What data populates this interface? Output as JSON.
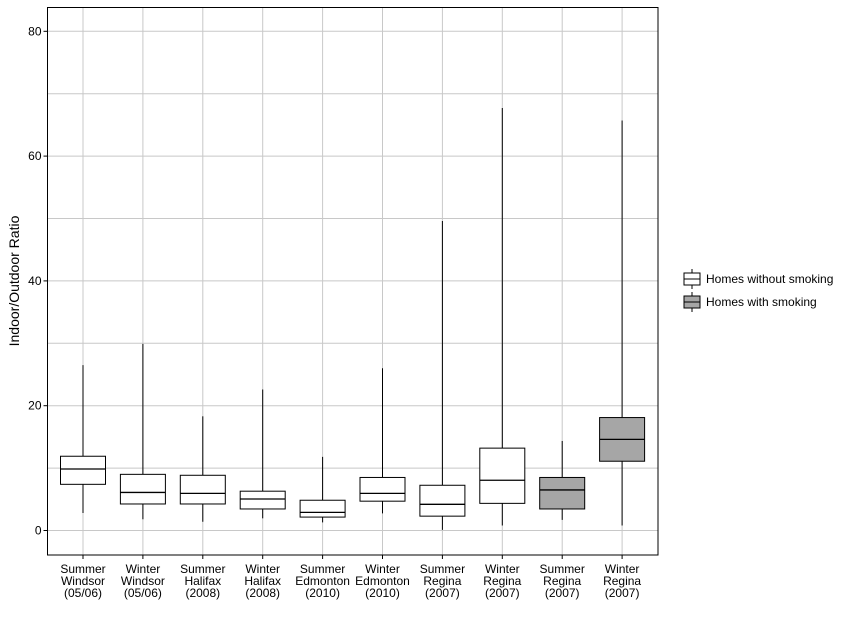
{
  "chart_data": {
    "type": "boxplot",
    "title": "",
    "xlabel": "",
    "ylabel": "Indoor/Outdoor Ratio",
    "ylim": [
      -3.9,
      83.9
    ],
    "yticks": [
      0,
      20,
      40,
      60,
      80
    ],
    "grid": true,
    "legend_position": "right",
    "legend": [
      {
        "label": "Homes without smoking",
        "fill": "#ffffff"
      },
      {
        "label": "Homes with smoking",
        "fill": "#a6a6a6"
      }
    ],
    "categories": [
      [
        "Summer",
        "Windsor",
        "(05/06)"
      ],
      [
        "Winter",
        "Windsor",
        "(05/06)"
      ],
      [
        "Summer",
        "Halifax",
        "(2008)"
      ],
      [
        "Winter",
        "Halifax",
        "(2008)"
      ],
      [
        "Summer",
        "Edmonton",
        "(2010)"
      ],
      [
        "Winter",
        "Edmonton",
        "(2010)"
      ],
      [
        "Summer",
        "Regina",
        "(2007)"
      ],
      [
        "Winter",
        "Regina",
        "(2007)"
      ],
      [
        "Summer",
        "Regina",
        "(2007)"
      ],
      [
        "Winter",
        "Regina",
        "(2007)"
      ]
    ],
    "boxes": [
      {
        "group": 0,
        "min": 2.8,
        "q1": 7.4,
        "median": 9.85,
        "q3": 11.9,
        "max": 26.5
      },
      {
        "group": 0,
        "min": 1.8,
        "q1": 4.25,
        "median": 6.1,
        "q3": 9.0,
        "max": 29.9
      },
      {
        "group": 0,
        "min": 1.4,
        "q1": 4.25,
        "median": 5.95,
        "q3": 8.85,
        "max": 18.3
      },
      {
        "group": 0,
        "min": 1.95,
        "q1": 3.45,
        "median": 5.05,
        "q3": 6.3,
        "max": 22.6
      },
      {
        "group": 0,
        "min": 1.3,
        "q1": 2.15,
        "median": 2.9,
        "q3": 4.85,
        "max": 11.8
      },
      {
        "group": 0,
        "min": 2.75,
        "q1": 4.7,
        "median": 5.95,
        "q3": 8.5,
        "max": 26.0
      },
      {
        "group": 0,
        "min": 0.1,
        "q1": 2.3,
        "median": 4.2,
        "q3": 7.25,
        "max": 49.6
      },
      {
        "group": 0,
        "min": 0.8,
        "q1": 4.35,
        "median": 8.05,
        "q3": 13.2,
        "max": 67.7
      },
      {
        "group": 1,
        "min": 1.7,
        "q1": 3.45,
        "median": 6.5,
        "q3": 8.5,
        "max": 14.35
      },
      {
        "group": 1,
        "min": 0.8,
        "q1": 11.1,
        "median": 14.6,
        "q3": 18.1,
        "max": 65.7
      }
    ]
  }
}
